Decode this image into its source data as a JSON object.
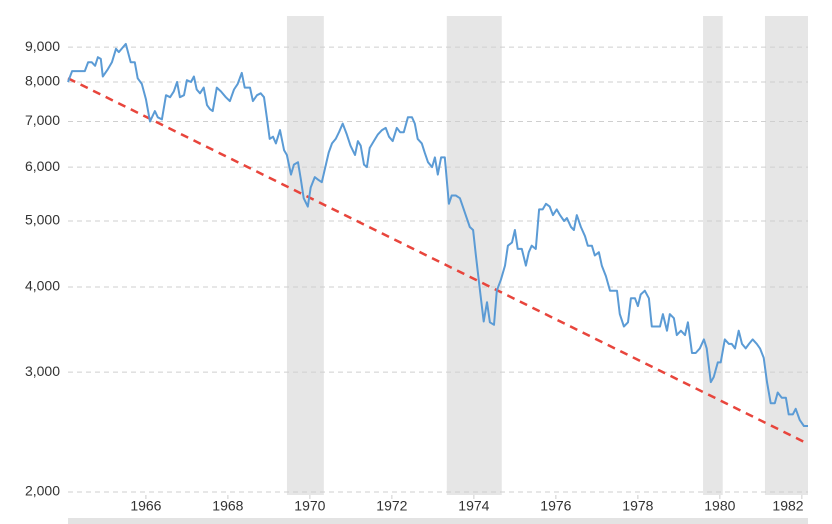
{
  "chart_data": {
    "type": "line",
    "log_y": true,
    "grid": true,
    "xlim": [
      1964.1,
      1982.15
    ],
    "xticks": [
      1966,
      1968,
      1970,
      1972,
      1974,
      1976,
      1978,
      1980,
      1982
    ],
    "ylim": [
      2000,
      10000
    ],
    "yticks": [
      {
        "value": 2000,
        "label": "2,000"
      },
      {
        "value": 3000,
        "label": "3,000"
      },
      {
        "value": 4000,
        "label": "4,000"
      },
      {
        "value": 5000,
        "label": "5,000"
      },
      {
        "value": 6000,
        "label": "6,000"
      },
      {
        "value": 7000,
        "label": "7,000"
      },
      {
        "value": 8000,
        "label": "8,000"
      },
      {
        "value": 9000,
        "label": "9,000"
      }
    ],
    "recessions": [
      [
        1969.44,
        1970.34
      ],
      [
        1973.34,
        1974.68
      ],
      [
        1979.59,
        1980.07
      ],
      [
        1981.1,
        1982.15
      ]
    ],
    "recession_color": "#e6e6e6",
    "trend": {
      "color": "#e8453c",
      "x": [
        1964.1,
        1982.05
      ],
      "values": [
        8100,
        2370
      ]
    },
    "series": [
      {
        "color": "#5b9bd5",
        "x": [
          1964.1,
          1964.2,
          1964.39,
          1964.51,
          1964.59,
          1964.68,
          1964.76,
          1964.83,
          1964.9,
          1964.95,
          1965.07,
          1965.17,
          1965.27,
          1965.34,
          1965.51,
          1965.63,
          1965.73,
          1965.8,
          1965.9,
          1966.0,
          1966.1,
          1966.22,
          1966.29,
          1966.39,
          1966.49,
          1966.59,
          1966.68,
          1966.76,
          1966.83,
          1966.93,
          1967.0,
          1967.1,
          1967.17,
          1967.24,
          1967.32,
          1967.41,
          1967.49,
          1967.56,
          1967.63,
          1967.73,
          1967.83,
          1967.95,
          1968.05,
          1968.15,
          1968.24,
          1968.34,
          1968.41,
          1968.54,
          1968.61,
          1968.71,
          1968.8,
          1968.88,
          1968.95,
          1969.02,
          1969.1,
          1969.17,
          1969.27,
          1969.37,
          1969.44,
          1969.54,
          1969.61,
          1969.71,
          1969.78,
          1969.85,
          1969.95,
          1970.02,
          1970.12,
          1970.2,
          1970.29,
          1970.39,
          1970.46,
          1970.54,
          1970.63,
          1970.71,
          1970.8,
          1970.9,
          1970.99,
          1971.1,
          1971.17,
          1971.24,
          1971.32,
          1971.39,
          1971.46,
          1971.56,
          1971.66,
          1971.76,
          1971.85,
          1971.93,
          1972.02,
          1972.12,
          1972.2,
          1972.29,
          1972.39,
          1972.49,
          1972.56,
          1972.63,
          1972.73,
          1972.8,
          1972.88,
          1972.98,
          1973.05,
          1973.12,
          1973.2,
          1973.29,
          1973.39,
          1973.46,
          1973.56,
          1973.66,
          1973.73,
          1973.8,
          1973.9,
          1973.98,
          1974.05,
          1974.15,
          1974.24,
          1974.32,
          1974.39,
          1974.49,
          1974.56,
          1974.66,
          1974.76,
          1974.83,
          1974.93,
          1975.0,
          1975.07,
          1975.17,
          1975.27,
          1975.34,
          1975.41,
          1975.51,
          1975.59,
          1975.68,
          1975.76,
          1975.85,
          1975.93,
          1976.02,
          1976.1,
          1976.2,
          1976.27,
          1976.37,
          1976.44,
          1976.51,
          1976.61,
          1976.71,
          1976.78,
          1976.88,
          1976.95,
          1977.05,
          1977.12,
          1977.22,
          1977.32,
          1977.39,
          1977.49,
          1977.56,
          1977.66,
          1977.76,
          1977.83,
          1977.93,
          1978.0,
          1978.07,
          1978.17,
          1978.27,
          1978.34,
          1978.44,
          1978.54,
          1978.61,
          1978.71,
          1978.78,
          1978.88,
          1978.95,
          1979.05,
          1979.15,
          1979.22,
          1979.32,
          1979.41,
          1979.51,
          1979.61,
          1979.68,
          1979.78,
          1979.85,
          1979.95,
          1980.02,
          1980.12,
          1980.22,
          1980.29,
          1980.37,
          1980.46,
          1980.54,
          1980.63,
          1980.71,
          1980.8,
          1980.9,
          1980.98,
          1981.07,
          1981.15,
          1981.24,
          1981.34,
          1981.41,
          1981.51,
          1981.61,
          1981.68,
          1981.78,
          1981.85,
          1981.95,
          1982.05,
          1982.15
        ],
        "values": [
          8000,
          8300,
          8300,
          8300,
          8550,
          8550,
          8450,
          8700,
          8650,
          8150,
          8350,
          8550,
          8950,
          8850,
          9100,
          8550,
          8550,
          8100,
          7950,
          7550,
          7000,
          7250,
          7100,
          7050,
          7650,
          7600,
          7750,
          8000,
          7600,
          7650,
          8050,
          8000,
          8150,
          7800,
          7700,
          7850,
          7400,
          7300,
          7250,
          7850,
          7750,
          7600,
          7500,
          7800,
          7950,
          8250,
          7850,
          7850,
          7500,
          7650,
          7700,
          7600,
          7100,
          6600,
          6650,
          6500,
          6800,
          6350,
          6250,
          5850,
          6050,
          6100,
          5750,
          5400,
          5250,
          5600,
          5800,
          5750,
          5700,
          6050,
          6300,
          6500,
          6600,
          6750,
          6950,
          6700,
          6450,
          6250,
          6550,
          6450,
          6050,
          6000,
          6400,
          6550,
          6700,
          6800,
          6850,
          6650,
          6550,
          6850,
          6750,
          6750,
          7100,
          7100,
          6950,
          6600,
          6500,
          6300,
          6100,
          6000,
          6200,
          5850,
          6200,
          6200,
          5300,
          5450,
          5450,
          5400,
          5250,
          5100,
          4900,
          4850,
          4450,
          3950,
          3560,
          3800,
          3550,
          3520,
          3950,
          4100,
          4300,
          4600,
          4650,
          4850,
          4550,
          4550,
          4300,
          4500,
          4600,
          4550,
          5200,
          5200,
          5300,
          5250,
          5100,
          5200,
          5100,
          5000,
          5050,
          4900,
          4850,
          5100,
          4900,
          4750,
          4600,
          4600,
          4450,
          4500,
          4300,
          4150,
          3950,
          3950,
          3950,
          3650,
          3500,
          3550,
          3850,
          3850,
          3750,
          3900,
          3950,
          3850,
          3500,
          3500,
          3500,
          3650,
          3450,
          3650,
          3600,
          3400,
          3450,
          3400,
          3550,
          3200,
          3200,
          3250,
          3350,
          3250,
          2900,
          2950,
          3100,
          3100,
          3350,
          3300,
          3300,
          3250,
          3450,
          3300,
          3250,
          3300,
          3350,
          3300,
          3250,
          3150,
          2900,
          2700,
          2700,
          2800,
          2750,
          2750,
          2600,
          2600,
          2650,
          2550,
          2500,
          2500
        ]
      }
    ]
  }
}
